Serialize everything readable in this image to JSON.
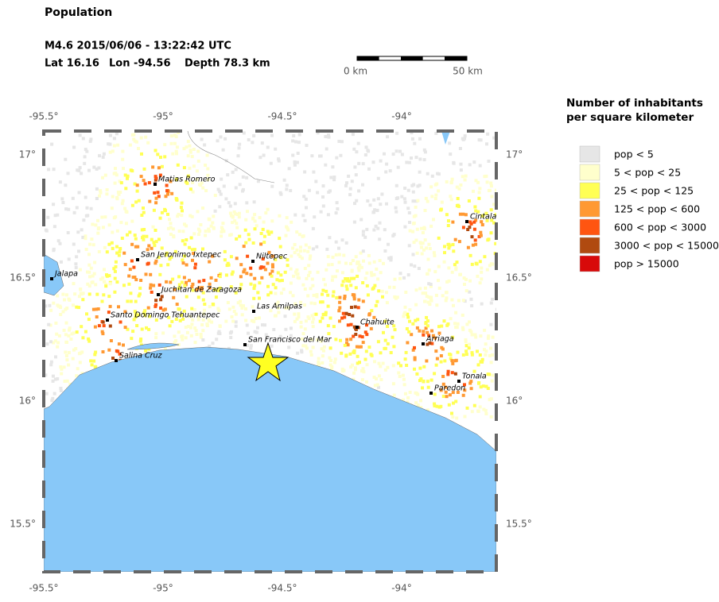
{
  "header": {
    "title": "Population",
    "event": "M4.6  2015/06/06 - 13:22:42 UTC",
    "lat": "Lat 16.16",
    "lon": "Lon -94.56",
    "depth": "Depth  78.3 km"
  },
  "scale_bar": {
    "start": "0 km",
    "end": "50 km"
  },
  "map": {
    "lon_ticks": [
      "-95.5°",
      "-95°",
      "-94.5°",
      "-94°"
    ],
    "lat_ticks": [
      "17°",
      "16.5°",
      "16°",
      "15.5°"
    ],
    "cities": [
      "Matias Romero",
      "Cintala",
      "San Jeronimo Ixtepec",
      "Niltepec",
      "Jalapa",
      "Juchitan de Zaragoza",
      "Las Amilpas",
      "Santo Domingo Tehuantepec",
      "Chahuite",
      "Arriaga",
      "San Francisco del Mar",
      "Salina Cruz",
      "Tonala",
      "Paredon"
    ]
  },
  "legend": {
    "title": "Number of inhabitants per square kilometer",
    "items": [
      {
        "label": "pop < 5",
        "color": "#e6e6e6"
      },
      {
        "label": "5 < pop < 25",
        "color": "#ffffcc"
      },
      {
        "label": "25 < pop < 125",
        "color": "#ffff55"
      },
      {
        "label": "125 < pop < 600",
        "color": "#ff9933"
      },
      {
        "label": "600 < pop < 3000",
        "color": "#ff5511"
      },
      {
        "label": "3000 < pop < 15000",
        "color": "#b04a10"
      },
      {
        "label": "pop > 15000",
        "color": "#d80a0a"
      }
    ]
  }
}
